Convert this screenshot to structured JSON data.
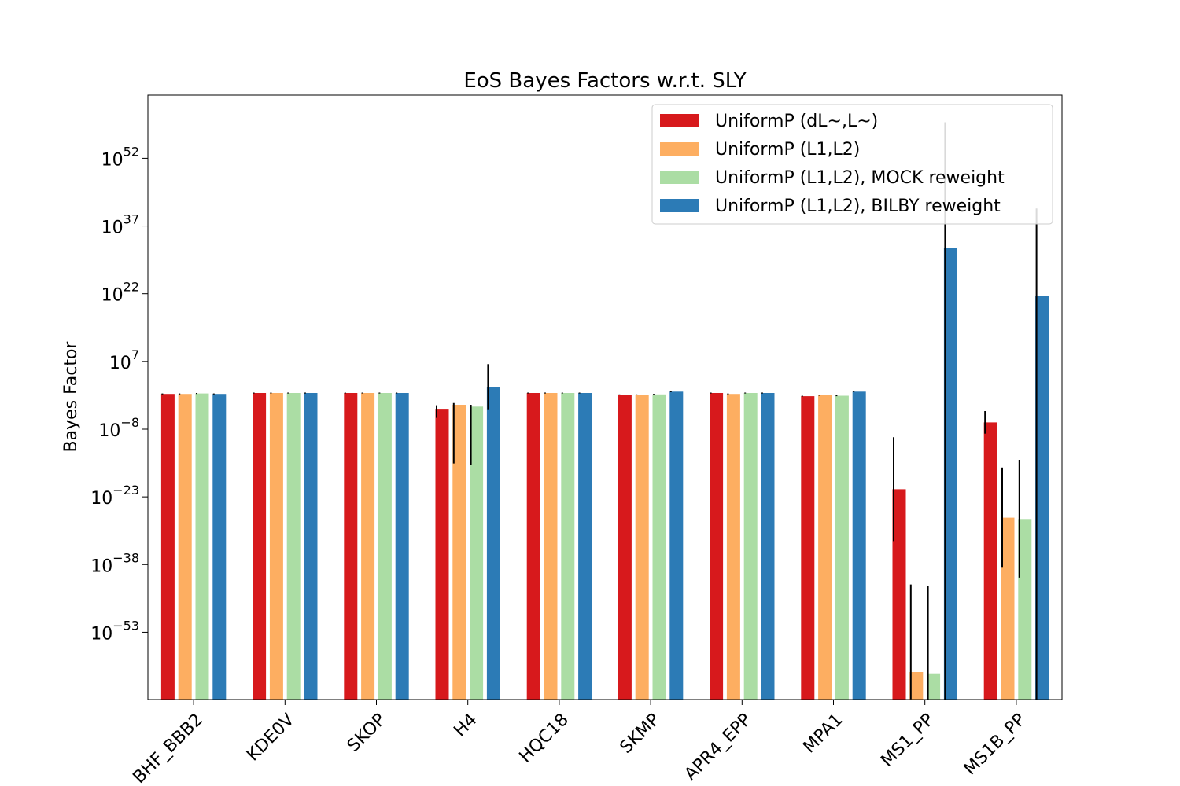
{
  "chart_data": {
    "type": "bar",
    "title": "EoS Bayes Factors w.r.t. SLY",
    "xlabel": "",
    "ylabel": "Bayes Factor",
    "yscale": "log",
    "ylim_log10": [
      -67.9,
      66.0
    ],
    "yticks": [
      {
        "exp": 52,
        "base": "10",
        "sup": "52"
      },
      {
        "exp": 37,
        "base": "10",
        "sup": "37"
      },
      {
        "exp": 22,
        "base": "10",
        "sup": "22"
      },
      {
        "exp": 7,
        "base": "10",
        "sup": "7"
      },
      {
        "exp": -8,
        "base": "10",
        "sup": "−8"
      },
      {
        "exp": -23,
        "base": "10",
        "sup": "−23"
      },
      {
        "exp": -38,
        "base": "10",
        "sup": "−38"
      },
      {
        "exp": -53,
        "base": "10",
        "sup": "−53"
      }
    ],
    "categories": [
      "BHF_BBB2",
      "KDE0V",
      "SKOP",
      "H4",
      "HQC18",
      "SKMP",
      "APR4_EPP",
      "MPA1",
      "MS1_PP",
      "MS1B_PP"
    ],
    "legend_position": "upper right",
    "grid": false,
    "series": [
      {
        "name": "UniformP (dL~,L~)",
        "color": "#d7191c",
        "log10_values": [
          -0.2,
          0.0,
          0.0,
          -3.5,
          0.0,
          -0.4,
          0.0,
          -0.7,
          -21.3,
          -6.5
        ],
        "log10_err_low": [
          0.1,
          0.1,
          0.1,
          2.0,
          0.1,
          0.1,
          0.1,
          0.1,
          11.5,
          2.5
        ],
        "log10_err_high": [
          0.1,
          0.1,
          0.1,
          0.8,
          0.1,
          0.1,
          0.1,
          0.1,
          11.5,
          2.5
        ]
      },
      {
        "name": "UniformP (L1,L2)",
        "color": "#fdae61",
        "log10_values": [
          -0.2,
          0.0,
          0.0,
          -2.6,
          0.0,
          -0.4,
          -0.2,
          -0.5,
          -61.8,
          -27.6
        ],
        "log10_err_low": [
          0.1,
          0.1,
          0.1,
          13.0,
          0.1,
          0.1,
          0.1,
          0.1,
          6.0,
          11.1
        ],
        "log10_err_high": [
          0.1,
          0.1,
          0.1,
          0.4,
          0.1,
          0.1,
          0.1,
          0.1,
          19.4,
          11.1
        ]
      },
      {
        "name": "UniformP (L1,L2), MOCK reweight",
        "color": "#abdda4",
        "log10_values": [
          -0.1,
          0.0,
          0.0,
          -3.0,
          0.0,
          -0.3,
          0.0,
          -0.6,
          -62.1,
          -27.9
        ],
        "log10_err_low": [
          0.1,
          0.1,
          0.1,
          13.0,
          0.1,
          0.1,
          0.1,
          0.1,
          6.0,
          13.0
        ],
        "log10_err_high": [
          0.1,
          0.1,
          0.1,
          0.4,
          0.1,
          0.1,
          0.1,
          0.1,
          19.4,
          13.1
        ]
      },
      {
        "name": "UniformP (L1,L2), BILBY reweight",
        "color": "#2c7bb6",
        "log10_values": [
          -0.2,
          0.0,
          0.0,
          1.4,
          0.0,
          0.3,
          0.0,
          0.3,
          32.1,
          21.6
        ],
        "log10_err_low": [
          0.1,
          0.1,
          0.1,
          5.0,
          0.1,
          0.1,
          0.1,
          0.1,
          100,
          100
        ],
        "log10_err_high": [
          0.1,
          0.1,
          0.1,
          5.0,
          0.1,
          0.1,
          0.1,
          0.1,
          27.9,
          19.3
        ]
      }
    ]
  }
}
